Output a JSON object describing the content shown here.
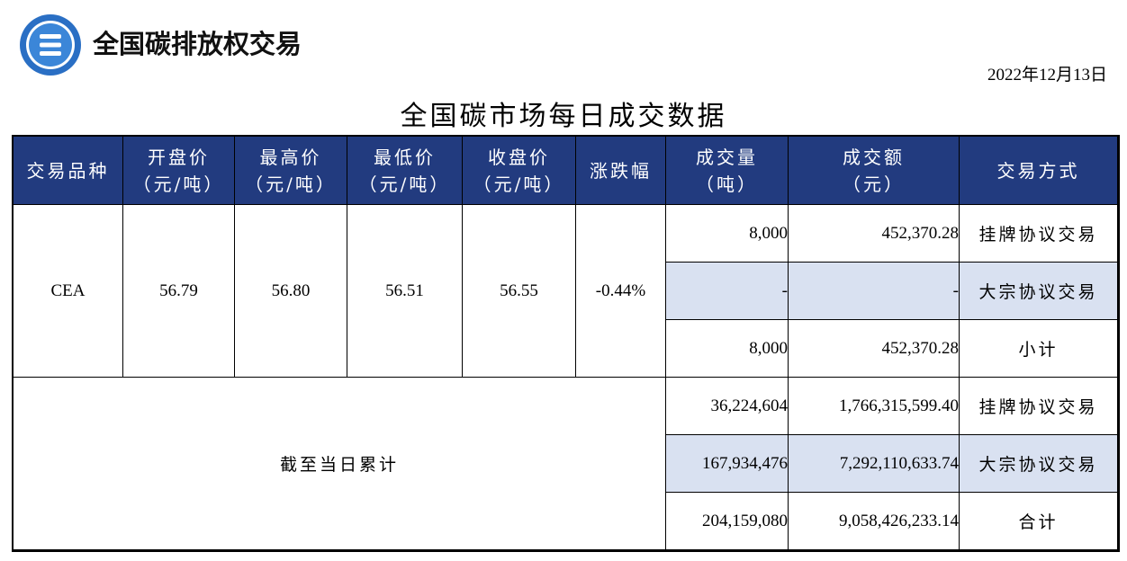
{
  "header": {
    "brand": "全国碳排放权交易",
    "date": "2022年12月13日"
  },
  "title": "全国碳市场每日成交数据",
  "colors": {
    "header_bg": "#223b7f",
    "row_highlight": "#d9e1f1",
    "logo_blue": "#2a6fc4"
  },
  "columns": {
    "product": "交易品种",
    "open": "开盘价",
    "high": "最高价",
    "low": "最低价",
    "close": "收盘价",
    "price_unit": "（元/吨）",
    "change": "涨跌幅",
    "volume": "成交量",
    "volume_unit": "（吨）",
    "amount": "成交额",
    "amount_unit": "（元）",
    "method": "交易方式"
  },
  "daily": {
    "product": "CEA",
    "open": "56.79",
    "high": "56.80",
    "low": "56.51",
    "close": "56.55",
    "change": "-0.44%",
    "rows": [
      {
        "volume": "8,000",
        "amount": "452,370.28",
        "method": "挂牌协议交易"
      },
      {
        "volume": "-",
        "amount": "-",
        "method": "大宗协议交易"
      },
      {
        "volume": "8,000",
        "amount": "452,370.28",
        "method": "小计"
      }
    ]
  },
  "cumulative": {
    "label": "截至当日累计",
    "rows": [
      {
        "volume": "36,224,604",
        "amount": "1,766,315,599.40",
        "method": "挂牌协议交易"
      },
      {
        "volume": "167,934,476",
        "amount": "7,292,110,633.74",
        "method": "大宗协议交易"
      },
      {
        "volume": "204,159,080",
        "amount": "9,058,426,233.14",
        "method": "合计"
      }
    ]
  }
}
